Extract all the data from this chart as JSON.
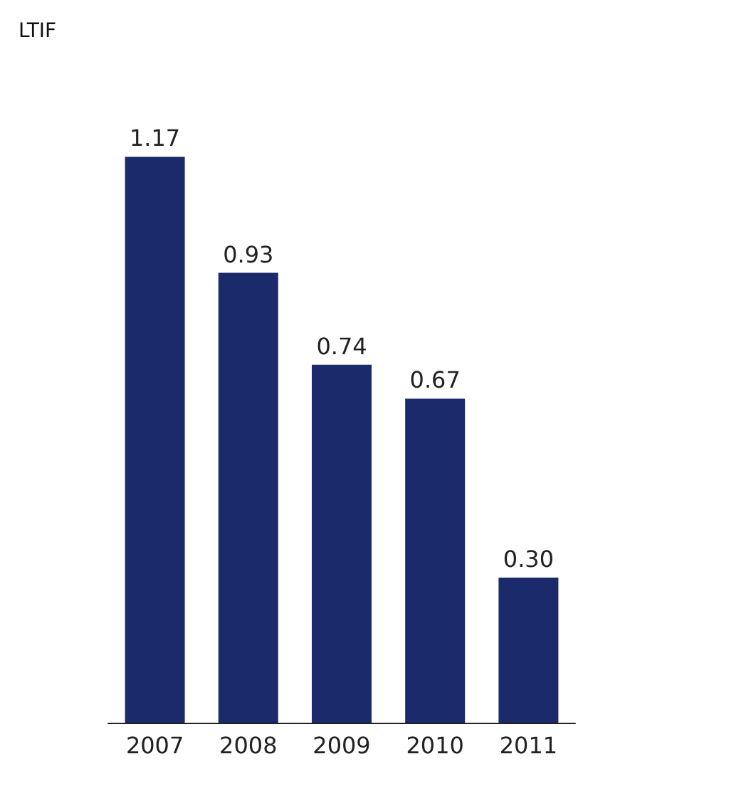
{
  "chart_data": {
    "type": "bar",
    "subtitle": "LTIF",
    "categories": [
      "2007",
      "2008",
      "2009",
      "2010",
      "2011"
    ],
    "values": [
      1.17,
      0.93,
      0.74,
      0.67,
      0.3
    ],
    "value_labels": [
      "1.17",
      "0.93",
      "0.74",
      "0.67",
      "0.30"
    ],
    "color": "#1b2a6b"
  }
}
